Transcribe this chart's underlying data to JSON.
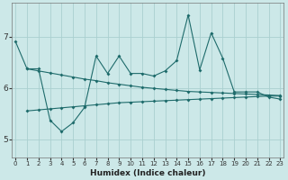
{
  "xlabel": "Humidex (Indice chaleur)",
  "bg_color": "#cce8e8",
  "grid_color": "#aacfcf",
  "line_color": "#1e6b6b",
  "x_ticks": [
    0,
    1,
    2,
    3,
    4,
    5,
    6,
    7,
    8,
    9,
    10,
    11,
    12,
    13,
    14,
    15,
    16,
    17,
    18,
    19,
    20,
    21,
    22,
    23
  ],
  "y_ticks": [
    5,
    6,
    7
  ],
  "ylim": [
    4.65,
    7.65
  ],
  "xlim": [
    -0.3,
    23.3
  ],
  "line1_x": [
    0,
    1,
    2,
    3,
    4,
    5,
    6,
    7,
    8,
    9,
    10,
    11,
    12,
    13,
    14,
    15,
    16,
    17,
    18,
    19,
    20,
    21,
    22,
    23
  ],
  "line1_y": [
    6.9,
    6.37,
    6.37,
    5.37,
    5.15,
    5.32,
    5.62,
    6.62,
    6.28,
    6.62,
    6.28,
    6.28,
    6.23,
    6.33,
    6.53,
    7.42,
    6.35,
    7.07,
    6.58,
    5.92,
    5.92,
    5.92,
    5.82,
    5.78
  ],
  "line2_x": [
    1,
    2,
    3,
    4,
    5,
    6,
    7,
    8,
    9,
    10,
    11,
    12,
    13,
    14,
    15,
    16,
    17,
    18,
    19,
    20,
    21,
    22,
    23
  ],
  "line2_y": [
    6.37,
    6.33,
    6.29,
    6.25,
    6.21,
    6.17,
    6.14,
    6.1,
    6.07,
    6.04,
    6.01,
    5.99,
    5.97,
    5.95,
    5.93,
    5.92,
    5.91,
    5.9,
    5.89,
    5.88,
    5.87,
    5.86,
    5.85
  ],
  "line3_x": [
    1,
    2,
    3,
    4,
    5,
    6,
    7,
    8,
    9,
    10,
    11,
    12,
    13,
    14,
    15,
    16,
    17,
    18,
    19,
    20,
    21,
    22,
    23
  ],
  "line3_y": [
    5.55,
    5.57,
    5.59,
    5.61,
    5.63,
    5.65,
    5.67,
    5.69,
    5.71,
    5.72,
    5.73,
    5.74,
    5.75,
    5.76,
    5.77,
    5.78,
    5.79,
    5.8,
    5.81,
    5.82,
    5.83,
    5.84,
    5.84
  ]
}
